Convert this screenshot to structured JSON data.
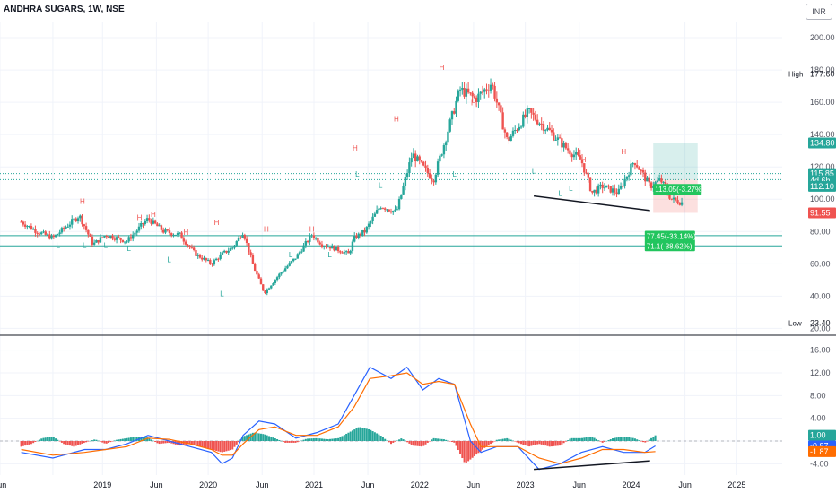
{
  "header": {
    "title": "ANDHRA SUGARS, 1W, NSE",
    "currency": "INR"
  },
  "colors": {
    "up": "#26a69a",
    "down": "#ef5350",
    "macd": "#2962ff",
    "signal": "#ff6d00",
    "text": "#131722",
    "axis": "#50535e"
  },
  "chart_data": [
    {
      "type": "candlestick",
      "title": "ANDHRA SUGARS, 1W, NSE",
      "x_ticks": [
        "Jun",
        "2019",
        "Jun",
        "2020",
        "Jun",
        "2021",
        "Jun",
        "2022",
        "Jun",
        "2023",
        "Jun",
        "2024",
        "Jun",
        "2025"
      ],
      "y_ticks": [
        "20.00",
        "40.00",
        "60.00",
        "80.00",
        "100.00",
        "120.00",
        "140.00",
        "160.00",
        "180.00",
        "200.00"
      ],
      "ylim": [
        18,
        210
      ],
      "close_path_x": [
        2018.2,
        2018.35,
        2018.5,
        2018.75,
        2018.88,
        2019.0,
        2019.2,
        2019.4,
        2019.55,
        2019.7,
        2019.85,
        2020.0,
        2020.1,
        2020.2,
        2020.3,
        2020.4,
        2020.5,
        2020.65,
        2020.8,
        2020.95,
        2021.05,
        2021.15,
        2021.3,
        2021.35,
        2021.45,
        2021.6,
        2021.75,
        2021.9,
        2022.0,
        2022.1,
        2022.2,
        2022.35,
        2022.5,
        2022.65,
        2022.8,
        2023.0,
        2023.2,
        2023.35,
        2023.5,
        2023.6,
        2023.7,
        2023.85,
        2024.0,
        2024.15,
        2024.25,
        2024.35,
        2024.45
      ],
      "close_path_y": [
        86,
        80,
        76,
        90,
        72,
        78,
        74,
        88,
        80,
        78,
        66,
        60,
        66,
        70,
        80,
        58,
        42,
        54,
        64,
        78,
        72,
        70,
        66,
        76,
        80,
        96,
        92,
        128,
        120,
        112,
        134,
        168,
        162,
        172,
        136,
        154,
        142,
        132,
        124,
        104,
        108,
        104,
        124,
        108,
        112,
        100,
        98
      ],
      "patterns": {
        "high_labels": [
          {
            "text": "H",
            "x": 2018.78,
            "y": 97
          },
          {
            "text": "H",
            "x": 2019.32,
            "y": 87
          },
          {
            "text": "H",
            "x": 2019.45,
            "y": 89
          },
          {
            "text": "H",
            "x": 2019.76,
            "y": 78
          },
          {
            "text": "H",
            "x": 2020.05,
            "y": 84
          },
          {
            "text": "H",
            "x": 2020.52,
            "y": 80
          },
          {
            "text": "H",
            "x": 2020.95,
            "y": 80
          },
          {
            "text": "H",
            "x": 2021.36,
            "y": 130
          },
          {
            "text": "H",
            "x": 2021.75,
            "y": 148
          },
          {
            "text": "H",
            "x": 2022.18,
            "y": 180
          },
          {
            "text": "H",
            "x": 2022.48,
            "y": 158
          },
          {
            "text": "H",
            "x": 2023.52,
            "y": 123
          },
          {
            "text": "H",
            "x": 2023.9,
            "y": 128
          }
        ],
        "low_labels": [
          {
            "text": "L",
            "x": 2018.55,
            "y": 70
          },
          {
            "text": "L",
            "x": 2018.8,
            "y": 70
          },
          {
            "text": "L",
            "x": 2019.0,
            "y": 70
          },
          {
            "text": "L",
            "x": 2019.22,
            "y": 68
          },
          {
            "text": "L",
            "x": 2019.6,
            "y": 61
          },
          {
            "text": "L",
            "x": 2020.1,
            "y": 40
          },
          {
            "text": "L",
            "x": 2020.75,
            "y": 64
          },
          {
            "text": "L",
            "x": 2021.12,
            "y": 64
          },
          {
            "text": "L",
            "x": 2021.38,
            "y": 114
          },
          {
            "text": "L",
            "x": 2021.6,
            "y": 107
          },
          {
            "text": "L",
            "x": 2022.3,
            "y": 114
          },
          {
            "text": "L",
            "x": 2023.05,
            "y": 116
          },
          {
            "text": "L",
            "x": 2023.3,
            "y": 102
          },
          {
            "text": "L",
            "x": 2023.4,
            "y": 105
          }
        ]
      },
      "trendline": {
        "x": [
          2023.05,
          2024.15
        ],
        "y": [
          102,
          93
        ]
      },
      "hlines": [
        {
          "y": 115.85,
          "style": "dotted",
          "color": "#26a69a"
        },
        {
          "y": 112.1,
          "style": "dotted",
          "color": "#26a69a"
        },
        {
          "y": 77.45,
          "style": "solid",
          "color": "#26a69a"
        },
        {
          "y": 71.1,
          "style": "solid",
          "color": "#26a69a"
        }
      ],
      "position": {
        "start_x": 2024.18,
        "end_x": 2024.6,
        "entry": 112.1,
        "target": 134.8,
        "stop": 91.55
      },
      "price_labels": [
        {
          "text": "High",
          "value": "177.60",
          "y": 177.6,
          "bg": "#ffffff",
          "color": "#131722"
        },
        {
          "text": "",
          "value": "134.80",
          "y": 134.8,
          "bg": "#26a69a",
          "color": "#ffffff"
        },
        {
          "text": "",
          "value": "115.85",
          "y": 115.85,
          "bg": "#26a69a",
          "color": "#ffffff"
        },
        {
          "text": "",
          "value": "4d 6h",
          "y": 111.5,
          "bg": "#26a69a",
          "color": "#ffffff"
        },
        {
          "text": "",
          "value": "112.10",
          "y": 108,
          "bg": "#26a69a",
          "color": "#ffffff"
        },
        {
          "text": "",
          "value": "91.55",
          "y": 91.55,
          "bg": "#ef5350",
          "color": "#ffffff"
        },
        {
          "text": "Low",
          "value": "23.40",
          "y": 23.4,
          "bg": "#ffffff",
          "color": "#131722"
        }
      ],
      "annotations": [
        {
          "text": "113.05(-3.27%)",
          "x": 2024.18,
          "y": 105
        },
        {
          "text": "77.45(-33.14%)",
          "x": 2024.1,
          "y": 76
        },
        {
          "text": "71.1(-38.62%)",
          "x": 2024.1,
          "y": 70
        }
      ]
    },
    {
      "type": "line",
      "title": "",
      "y_ticks": [
        "-4.00",
        "0.00",
        "4.00",
        "8.00",
        "12.00",
        "16.00"
      ],
      "ylim": [
        -6,
        18
      ],
      "series": [
        {
          "name": "",
          "color": "#2962ff",
          "x": [
            2018.2,
            2018.5,
            2018.8,
            2019.0,
            2019.2,
            2019.4,
            2019.6,
            2019.8,
            2020.0,
            2020.1,
            2020.2,
            2020.3,
            2020.45,
            2020.6,
            2020.8,
            2021.0,
            2021.2,
            2021.35,
            2021.5,
            2021.7,
            2021.85,
            2022.0,
            2022.15,
            2022.3,
            2022.45,
            2022.55,
            2022.7,
            2022.9,
            2023.1,
            2023.3,
            2023.5,
            2023.7,
            2023.9,
            2024.1,
            2024.2
          ],
          "y": [
            -2,
            -3,
            -1.5,
            -1.5,
            -0.5,
            1,
            0,
            -1,
            -2,
            -4,
            -3,
            1,
            3.5,
            3,
            0.5,
            1.5,
            3,
            8,
            13,
            11,
            13,
            9,
            11,
            10,
            0,
            -2,
            -1,
            -1,
            -5,
            -4,
            -2,
            -1,
            -2,
            -2,
            -0.87
          ]
        },
        {
          "name": "",
          "color": "#ff6d00",
          "x": [
            2018.2,
            2018.5,
            2018.8,
            2019.0,
            2019.2,
            2019.4,
            2019.6,
            2019.8,
            2020.0,
            2020.1,
            2020.2,
            2020.3,
            2020.45,
            2020.6,
            2020.8,
            2021.0,
            2021.2,
            2021.35,
            2021.5,
            2021.7,
            2021.85,
            2022.0,
            2022.15,
            2022.3,
            2022.45,
            2022.55,
            2022.7,
            2022.9,
            2023.1,
            2023.3,
            2023.5,
            2023.7,
            2023.9,
            2024.1,
            2024.2
          ],
          "y": [
            -1.5,
            -2.5,
            -2,
            -1.5,
            -1,
            0.5,
            0.3,
            -0.5,
            -1.5,
            -2.5,
            -2.5,
            -0.5,
            2,
            2.5,
            1,
            1,
            2.5,
            6,
            11,
            11.5,
            12,
            10,
            10.5,
            10,
            3,
            -1,
            -1,
            -1,
            -3,
            -4,
            -3,
            -1.5,
            -1.5,
            -2,
            -1.87
          ]
        }
      ],
      "histogram": {
        "x": [
          2018.2,
          2018.3,
          2018.4,
          2018.5,
          2018.6,
          2018.7,
          2018.8,
          2018.9,
          2019.0,
          2019.1,
          2019.2,
          2019.3,
          2019.4,
          2019.5,
          2019.6,
          2019.7,
          2019.8,
          2019.9,
          2020.0,
          2020.1,
          2020.2,
          2020.3,
          2020.4,
          2020.5,
          2020.6,
          2020.7,
          2020.8,
          2020.9,
          2021.0,
          2021.1,
          2021.2,
          2021.3,
          2021.4,
          2021.5,
          2021.6,
          2021.7,
          2021.8,
          2021.9,
          2022.0,
          2022.1,
          2022.2,
          2022.3,
          2022.4,
          2022.5,
          2022.6,
          2022.7,
          2022.8,
          2022.9,
          2023.0,
          2023.1,
          2023.2,
          2023.3,
          2023.4,
          2023.5,
          2023.6,
          2023.7,
          2023.8,
          2023.9,
          2024.0,
          2024.1,
          2024.2
        ],
        "y": [
          -1,
          -0.5,
          0.5,
          0.8,
          -0.5,
          -1,
          -0.3,
          0.3,
          -0.5,
          0.2,
          0.5,
          0.8,
          0.6,
          -0.5,
          -0.3,
          -0.8,
          -0.5,
          -1,
          -1.5,
          -2,
          -1.5,
          0.8,
          1.5,
          1.2,
          0.5,
          -0.3,
          -0.3,
          0.4,
          0.5,
          0.3,
          0.5,
          1.5,
          2.5,
          2,
          1,
          -0.5,
          0.5,
          -0.8,
          -1,
          0.5,
          0.3,
          -0.3,
          -4,
          -2.5,
          -1,
          0.2,
          0.5,
          -0.3,
          -1,
          -0.5,
          -1,
          -0.8,
          0.5,
          0.5,
          0.8,
          -0.3,
          0.5,
          0.8,
          0.5,
          -0.3,
          1
        ]
      },
      "trendline": {
        "x": [
          2023.05,
          2024.15
        ],
        "y": [
          -5,
          -3.5
        ]
      },
      "price_labels": [
        {
          "value": "1.00",
          "y": 1.0,
          "bg": "#26a69a",
          "color": "#ffffff"
        },
        {
          "value": "-0.87",
          "y": -0.87,
          "bg": "#2962ff",
          "color": "#ffffff"
        },
        {
          "value": "-1.87",
          "y": -1.87,
          "bg": "#ff6d00",
          "color": "#ffffff"
        }
      ]
    }
  ]
}
